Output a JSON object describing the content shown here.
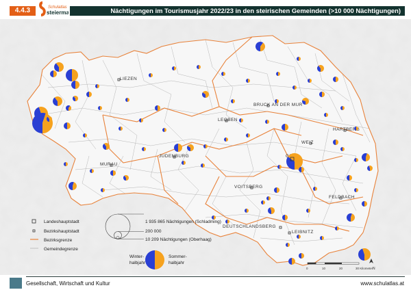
{
  "header": {
    "section_number": "4.4.3",
    "logo_line1": "Schulatlas",
    "logo_line2": "steiermark",
    "title": "Nächtigungen im Tourismusjahr 2022/23 in den steirischen Gemeinden (>10 000 Nächtigungen)"
  },
  "districts": [
    "LIEZEN",
    "BRUCK AN DER MUR",
    "LEOBEN",
    "HARTBERG",
    "MURAU",
    "JUDENBURG",
    "WEIZ",
    "GRAZ",
    "VOITSBERG",
    "FELDBACH",
    "DEUTSCHLANDSBERG",
    "LEIBNITZ"
  ],
  "legend": {
    "items": [
      "Landeshauptstadt",
      "Bezirkshauptstadt",
      "Bezirksgrenze",
      "Gemeindegrenze"
    ],
    "size_labels": [
      "1 935 865 Nächtigungen (Schladming)",
      "200 000",
      "10 209 Nächtigungen (Oberhaag)"
    ],
    "winter_label": "Winter-\nhalbjahr",
    "summer_label": "Sommer-\nhalbjahr"
  },
  "colors": {
    "winter": "#2a3fd3",
    "summer": "#f6a21e",
    "border_district": "#e8823a",
    "border_municipality": "#b5b5b5",
    "terrain": "#e9e9e9",
    "header_bar": "#13332f",
    "accent": "#e35f16"
  },
  "scale": {
    "ticks": [
      "0",
      "10",
      "20",
      "30 Kilometer"
    ]
  },
  "north_label": "N",
  "footer": {
    "left": "Gesellschaft, Wirtschaft und Kultur",
    "right": "www.schulatlas.at"
  }
}
